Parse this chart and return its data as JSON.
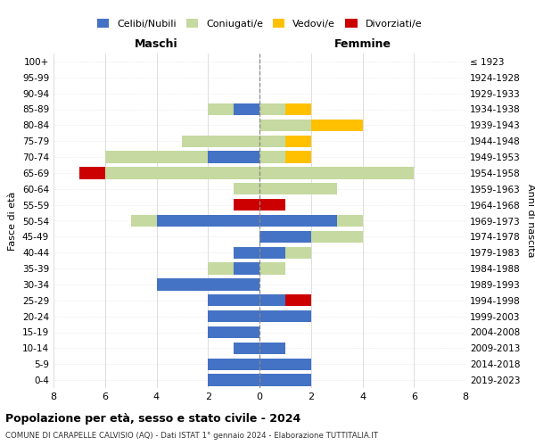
{
  "age_groups": [
    "0-4",
    "5-9",
    "10-14",
    "15-19",
    "20-24",
    "25-29",
    "30-34",
    "35-39",
    "40-44",
    "45-49",
    "50-54",
    "55-59",
    "60-64",
    "65-69",
    "70-74",
    "75-79",
    "80-84",
    "85-89",
    "90-94",
    "95-99",
    "100+"
  ],
  "birth_years": [
    "2019-2023",
    "2014-2018",
    "2009-2013",
    "2004-2008",
    "1999-2003",
    "1994-1998",
    "1989-1993",
    "1984-1988",
    "1979-1983",
    "1974-1978",
    "1969-1973",
    "1964-1968",
    "1959-1963",
    "1954-1958",
    "1949-1953",
    "1944-1948",
    "1939-1943",
    "1934-1938",
    "1929-1933",
    "1924-1928",
    "≤ 1923"
  ],
  "colors": {
    "celibi": "#4472c4",
    "coniugati": "#c5d9a0",
    "vedovi": "#ffc000",
    "divorziati": "#cc0000"
  },
  "males": {
    "celibi": [
      2,
      2,
      1,
      2,
      2,
      2,
      4,
      1,
      1,
      0,
      4,
      0,
      0,
      0,
      2,
      0,
      0,
      1,
      0,
      0,
      0
    ],
    "coniugati": [
      0,
      0,
      0,
      0,
      0,
      0,
      0,
      1,
      0,
      0,
      1,
      0,
      1,
      6,
      4,
      3,
      0,
      1,
      0,
      0,
      0
    ],
    "vedovi": [
      0,
      0,
      0,
      0,
      0,
      0,
      0,
      0,
      0,
      0,
      0,
      0,
      0,
      0,
      0,
      0,
      0,
      0,
      0,
      0,
      0
    ],
    "divorziati": [
      0,
      0,
      0,
      0,
      0,
      0,
      0,
      0,
      0,
      0,
      0,
      1,
      0,
      1,
      0,
      0,
      0,
      0,
      0,
      0,
      0
    ]
  },
  "females": {
    "celibi": [
      2,
      2,
      1,
      0,
      2,
      1,
      0,
      0,
      1,
      2,
      3,
      0,
      0,
      0,
      0,
      0,
      0,
      0,
      0,
      0,
      0
    ],
    "coniugati": [
      0,
      0,
      0,
      0,
      0,
      0,
      0,
      1,
      1,
      2,
      1,
      0,
      3,
      6,
      1,
      1,
      2,
      1,
      0,
      0,
      0
    ],
    "vedovi": [
      0,
      0,
      0,
      0,
      0,
      0,
      0,
      0,
      0,
      0,
      0,
      0,
      0,
      0,
      1,
      1,
      2,
      1,
      0,
      0,
      0
    ],
    "divorziati": [
      0,
      0,
      0,
      0,
      0,
      1,
      0,
      0,
      0,
      0,
      0,
      1,
      0,
      0,
      0,
      0,
      0,
      0,
      0,
      0,
      0
    ]
  },
  "xlim": 8,
  "title": "Popolazione per età, sesso e stato civile - 2024",
  "subtitle": "COMUNE DI CARAPELLE CALVISIO (AQ) - Dati ISTAT 1° gennaio 2024 - Elaborazione TUTTITALIA.IT",
  "ylabel_left": "Fasce di età",
  "ylabel_right": "Anni di nascita",
  "xlabel_males": "Maschi",
  "xlabel_females": "Femmine",
  "legend_labels": [
    "Celibi/Nubili",
    "Coniugati/e",
    "Vedovi/e",
    "Divorziati/e"
  ],
  "background_color": "#ffffff",
  "grid_color": "#dddddd"
}
